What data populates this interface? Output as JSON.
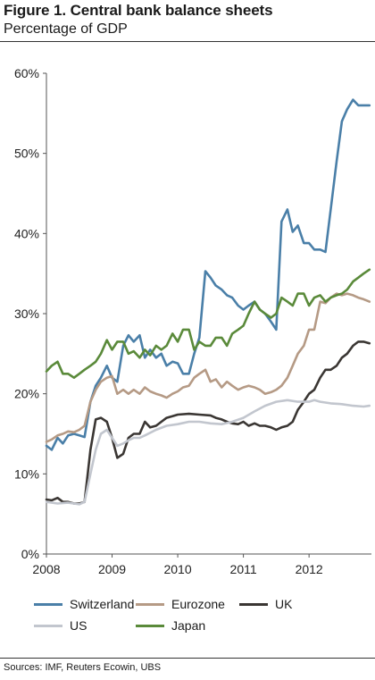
{
  "header": {
    "title": "Figure 1. Central bank balance sheets",
    "subtitle": "Percentage of GDP"
  },
  "footer": {
    "source": "Sources: IMF, Reuters Ecowin, UBS"
  },
  "chart_data": {
    "type": "line",
    "title": "Figure 1. Central bank balance sheets",
    "subtitle": "Percentage of GDP",
    "xlabel": "",
    "ylabel": "",
    "xlim": [
      2008,
      2012.95
    ],
    "ylim": [
      0,
      60
    ],
    "x_ticks": [
      2008,
      2009,
      2010,
      2011,
      2012
    ],
    "x_tick_labels": [
      "2008",
      "2009",
      "2010",
      "2011",
      "2012"
    ],
    "y_ticks": [
      0,
      10,
      20,
      30,
      40,
      50,
      60
    ],
    "y_tick_labels": [
      "0%",
      "10%",
      "20%",
      "30%",
      "40%",
      "50%",
      "60%"
    ],
    "grid": false,
    "legend": "bottom",
    "series": [
      {
        "name": "Switzerland",
        "color": "#4a7fa8",
        "points": [
          [
            2008.0,
            13.5
          ],
          [
            2008.08,
            13.0
          ],
          [
            2008.17,
            14.5
          ],
          [
            2008.25,
            13.8
          ],
          [
            2008.33,
            14.8
          ],
          [
            2008.42,
            15.0
          ],
          [
            2008.5,
            14.8
          ],
          [
            2008.58,
            14.6
          ],
          [
            2008.67,
            19.0
          ],
          [
            2008.75,
            21.0
          ],
          [
            2008.83,
            22.0
          ],
          [
            2008.92,
            23.5
          ],
          [
            2009.0,
            22.0
          ],
          [
            2009.08,
            21.5
          ],
          [
            2009.17,
            26.0
          ],
          [
            2009.25,
            27.3
          ],
          [
            2009.33,
            26.5
          ],
          [
            2009.42,
            27.3
          ],
          [
            2009.5,
            24.5
          ],
          [
            2009.58,
            25.5
          ],
          [
            2009.67,
            24.5
          ],
          [
            2009.75,
            25.0
          ],
          [
            2009.83,
            23.5
          ],
          [
            2009.92,
            24.0
          ],
          [
            2010.0,
            23.8
          ],
          [
            2010.08,
            22.5
          ],
          [
            2010.17,
            22.5
          ],
          [
            2010.25,
            25.0
          ],
          [
            2010.33,
            27.0
          ],
          [
            2010.42,
            35.3
          ],
          [
            2010.5,
            34.5
          ],
          [
            2010.58,
            33.5
          ],
          [
            2010.67,
            33.0
          ],
          [
            2010.75,
            32.3
          ],
          [
            2010.83,
            32.0
          ],
          [
            2010.92,
            31.0
          ],
          [
            2011.0,
            30.5
          ],
          [
            2011.08,
            31.0
          ],
          [
            2011.17,
            31.5
          ],
          [
            2011.25,
            30.5
          ],
          [
            2011.33,
            30.0
          ],
          [
            2011.42,
            29.0
          ],
          [
            2011.5,
            28.0
          ],
          [
            2011.58,
            41.5
          ],
          [
            2011.67,
            43.0
          ],
          [
            2011.75,
            40.2
          ],
          [
            2011.83,
            41.0
          ],
          [
            2011.92,
            38.8
          ],
          [
            2012.0,
            38.8
          ],
          [
            2012.08,
            38.0
          ],
          [
            2012.17,
            38.0
          ],
          [
            2012.25,
            37.7
          ],
          [
            2012.33,
            43.0
          ],
          [
            2012.42,
            49.0
          ],
          [
            2012.5,
            54.0
          ],
          [
            2012.58,
            55.5
          ],
          [
            2012.67,
            56.7
          ],
          [
            2012.75,
            56.0
          ],
          [
            2012.83,
            56.0
          ],
          [
            2012.92,
            56.0
          ]
        ]
      },
      {
        "name": "Eurozone",
        "color": "#b59a85",
        "points": [
          [
            2008.0,
            14.0
          ],
          [
            2008.08,
            14.3
          ],
          [
            2008.17,
            14.8
          ],
          [
            2008.25,
            15.0
          ],
          [
            2008.33,
            15.3
          ],
          [
            2008.42,
            15.2
          ],
          [
            2008.5,
            15.5
          ],
          [
            2008.58,
            16.0
          ],
          [
            2008.67,
            19.0
          ],
          [
            2008.75,
            20.5
          ],
          [
            2008.83,
            21.5
          ],
          [
            2008.92,
            22.0
          ],
          [
            2009.0,
            22.2
          ],
          [
            2009.08,
            20.0
          ],
          [
            2009.17,
            20.5
          ],
          [
            2009.25,
            20.0
          ],
          [
            2009.33,
            20.5
          ],
          [
            2009.42,
            20.0
          ],
          [
            2009.5,
            20.8
          ],
          [
            2009.58,
            20.3
          ],
          [
            2009.67,
            20.0
          ],
          [
            2009.75,
            19.8
          ],
          [
            2009.83,
            19.5
          ],
          [
            2009.92,
            20.0
          ],
          [
            2010.0,
            20.3
          ],
          [
            2010.08,
            20.8
          ],
          [
            2010.17,
            21.0
          ],
          [
            2010.25,
            22.0
          ],
          [
            2010.33,
            22.5
          ],
          [
            2010.42,
            23.0
          ],
          [
            2010.5,
            21.5
          ],
          [
            2010.58,
            21.8
          ],
          [
            2010.67,
            20.8
          ],
          [
            2010.75,
            21.5
          ],
          [
            2010.83,
            21.0
          ],
          [
            2010.92,
            20.5
          ],
          [
            2011.0,
            20.8
          ],
          [
            2011.08,
            21.0
          ],
          [
            2011.17,
            20.8
          ],
          [
            2011.25,
            20.5
          ],
          [
            2011.33,
            20.0
          ],
          [
            2011.42,
            20.2
          ],
          [
            2011.5,
            20.5
          ],
          [
            2011.58,
            21.0
          ],
          [
            2011.67,
            22.0
          ],
          [
            2011.75,
            23.5
          ],
          [
            2011.83,
            25.0
          ],
          [
            2011.92,
            26.0
          ],
          [
            2012.0,
            28.0
          ],
          [
            2012.08,
            28.0
          ],
          [
            2012.17,
            31.5
          ],
          [
            2012.25,
            31.3
          ],
          [
            2012.33,
            32.0
          ],
          [
            2012.42,
            32.5
          ],
          [
            2012.5,
            32.3
          ],
          [
            2012.58,
            32.5
          ],
          [
            2012.67,
            32.3
          ],
          [
            2012.75,
            32.0
          ],
          [
            2012.83,
            31.8
          ],
          [
            2012.92,
            31.5
          ]
        ]
      },
      {
        "name": "UK",
        "color": "#3a3633",
        "points": [
          [
            2008.0,
            6.8
          ],
          [
            2008.08,
            6.7
          ],
          [
            2008.17,
            7.0
          ],
          [
            2008.25,
            6.5
          ],
          [
            2008.33,
            6.5
          ],
          [
            2008.42,
            6.3
          ],
          [
            2008.5,
            6.3
          ],
          [
            2008.58,
            6.5
          ],
          [
            2008.67,
            13.0
          ],
          [
            2008.75,
            16.8
          ],
          [
            2008.83,
            17.0
          ],
          [
            2008.92,
            16.5
          ],
          [
            2009.0,
            14.5
          ],
          [
            2009.08,
            12.0
          ],
          [
            2009.17,
            12.5
          ],
          [
            2009.25,
            14.5
          ],
          [
            2009.33,
            15.0
          ],
          [
            2009.42,
            15.0
          ],
          [
            2009.5,
            16.5
          ],
          [
            2009.58,
            15.8
          ],
          [
            2009.67,
            16.0
          ],
          [
            2009.75,
            16.5
          ],
          [
            2009.83,
            17.0
          ],
          [
            2009.92,
            17.2
          ],
          [
            2010.0,
            17.4
          ],
          [
            2010.17,
            17.5
          ],
          [
            2010.33,
            17.4
          ],
          [
            2010.5,
            17.3
          ],
          [
            2010.58,
            17.0
          ],
          [
            2010.67,
            16.8
          ],
          [
            2010.75,
            16.5
          ],
          [
            2010.83,
            16.3
          ],
          [
            2010.92,
            16.2
          ],
          [
            2011.0,
            16.5
          ],
          [
            2011.08,
            16.0
          ],
          [
            2011.17,
            16.3
          ],
          [
            2011.25,
            16.0
          ],
          [
            2011.33,
            16.0
          ],
          [
            2011.42,
            15.8
          ],
          [
            2011.5,
            15.5
          ],
          [
            2011.58,
            15.8
          ],
          [
            2011.67,
            16.0
          ],
          [
            2011.75,
            16.5
          ],
          [
            2011.83,
            18.0
          ],
          [
            2011.92,
            19.0
          ],
          [
            2012.0,
            20.0
          ],
          [
            2012.08,
            20.5
          ],
          [
            2012.17,
            22.0
          ],
          [
            2012.25,
            23.0
          ],
          [
            2012.33,
            23.0
          ],
          [
            2012.42,
            23.5
          ],
          [
            2012.5,
            24.5
          ],
          [
            2012.58,
            25.0
          ],
          [
            2012.67,
            26.0
          ],
          [
            2012.75,
            26.5
          ],
          [
            2012.83,
            26.5
          ],
          [
            2012.92,
            26.3
          ]
        ]
      },
      {
        "name": "US",
        "color": "#c2c6ce",
        "points": [
          [
            2008.0,
            6.5
          ],
          [
            2008.17,
            6.3
          ],
          [
            2008.33,
            6.4
          ],
          [
            2008.5,
            6.2
          ],
          [
            2008.58,
            6.5
          ],
          [
            2008.67,
            10.0
          ],
          [
            2008.75,
            13.0
          ],
          [
            2008.83,
            15.0
          ],
          [
            2008.92,
            15.5
          ],
          [
            2009.0,
            14.5
          ],
          [
            2009.08,
            13.5
          ],
          [
            2009.17,
            13.8
          ],
          [
            2009.25,
            14.2
          ],
          [
            2009.33,
            14.5
          ],
          [
            2009.42,
            14.5
          ],
          [
            2009.5,
            14.8
          ],
          [
            2009.67,
            15.5
          ],
          [
            2009.83,
            16.0
          ],
          [
            2010.0,
            16.2
          ],
          [
            2010.17,
            16.5
          ],
          [
            2010.33,
            16.5
          ],
          [
            2010.5,
            16.3
          ],
          [
            2010.67,
            16.2
          ],
          [
            2010.83,
            16.5
          ],
          [
            2011.0,
            17.0
          ],
          [
            2011.17,
            17.8
          ],
          [
            2011.33,
            18.5
          ],
          [
            2011.5,
            19.0
          ],
          [
            2011.67,
            19.2
          ],
          [
            2011.83,
            19.0
          ],
          [
            2012.0,
            19.0
          ],
          [
            2012.08,
            19.2
          ],
          [
            2012.17,
            19.0
          ],
          [
            2012.33,
            18.8
          ],
          [
            2012.5,
            18.7
          ],
          [
            2012.67,
            18.5
          ],
          [
            2012.83,
            18.4
          ],
          [
            2012.92,
            18.5
          ]
        ]
      },
      {
        "name": "Japan",
        "color": "#5a8a3a",
        "points": [
          [
            2008.0,
            22.8
          ],
          [
            2008.08,
            23.5
          ],
          [
            2008.17,
            24.0
          ],
          [
            2008.25,
            22.5
          ],
          [
            2008.33,
            22.5
          ],
          [
            2008.42,
            22.0
          ],
          [
            2008.5,
            22.5
          ],
          [
            2008.58,
            23.0
          ],
          [
            2008.67,
            23.5
          ],
          [
            2008.75,
            24.0
          ],
          [
            2008.83,
            25.0
          ],
          [
            2008.92,
            26.7
          ],
          [
            2009.0,
            25.5
          ],
          [
            2009.08,
            26.5
          ],
          [
            2009.17,
            26.5
          ],
          [
            2009.25,
            25.0
          ],
          [
            2009.33,
            25.3
          ],
          [
            2009.42,
            24.5
          ],
          [
            2009.5,
            25.5
          ],
          [
            2009.58,
            24.8
          ],
          [
            2009.67,
            26.0
          ],
          [
            2009.75,
            25.5
          ],
          [
            2009.83,
            26.0
          ],
          [
            2009.92,
            27.5
          ],
          [
            2010.0,
            26.5
          ],
          [
            2010.08,
            28.0
          ],
          [
            2010.17,
            28.0
          ],
          [
            2010.25,
            25.5
          ],
          [
            2010.33,
            26.5
          ],
          [
            2010.42,
            26.0
          ],
          [
            2010.5,
            26.0
          ],
          [
            2010.58,
            27.0
          ],
          [
            2010.67,
            27.0
          ],
          [
            2010.75,
            26.0
          ],
          [
            2010.83,
            27.5
          ],
          [
            2010.92,
            28.0
          ],
          [
            2011.0,
            28.5
          ],
          [
            2011.08,
            30.0
          ],
          [
            2011.17,
            31.5
          ],
          [
            2011.25,
            30.5
          ],
          [
            2011.33,
            30.0
          ],
          [
            2011.42,
            29.5
          ],
          [
            2011.5,
            30.0
          ],
          [
            2011.58,
            32.0
          ],
          [
            2011.67,
            31.5
          ],
          [
            2011.75,
            31.0
          ],
          [
            2011.83,
            32.5
          ],
          [
            2011.92,
            32.5
          ],
          [
            2012.0,
            31.0
          ],
          [
            2012.08,
            32.0
          ],
          [
            2012.17,
            32.3
          ],
          [
            2012.25,
            31.5
          ],
          [
            2012.33,
            32.0
          ],
          [
            2012.42,
            32.3
          ],
          [
            2012.5,
            32.5
          ],
          [
            2012.58,
            33.0
          ],
          [
            2012.67,
            34.0
          ],
          [
            2012.75,
            34.5
          ],
          [
            2012.83,
            35.0
          ],
          [
            2012.92,
            35.5
          ]
        ]
      }
    ]
  }
}
